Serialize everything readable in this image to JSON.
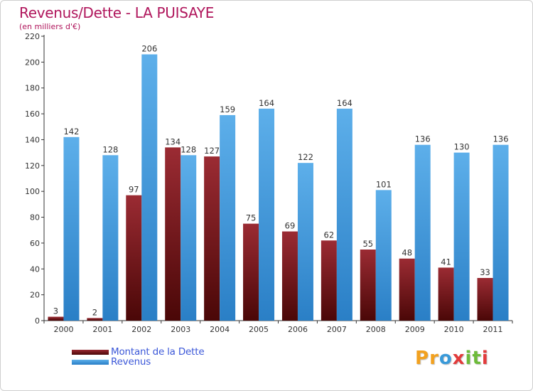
{
  "title": "Revenus/Dette - LA PUISAYE",
  "subtitle": "(en milliers d'€)",
  "colors": {
    "title": "#b0165c",
    "dette_top": "#9b2b33",
    "dette_bottom": "#4a0707",
    "revenus_top": "#5dafea",
    "revenus_bottom": "#2a7fc6",
    "axis": "#333333",
    "legend_text": "#3b57d8"
  },
  "chart_data": {
    "type": "bar",
    "title": "Revenus/Dette - LA PUISAYE",
    "subtitle": "(en milliers d'€)",
    "xlabel": "",
    "ylabel": "",
    "ylim": [
      0,
      220
    ],
    "yticks": [
      0,
      20,
      40,
      60,
      80,
      100,
      120,
      140,
      160,
      180,
      200,
      220
    ],
    "grid": false,
    "categories": [
      "2000",
      "2001",
      "2002",
      "2003",
      "2004",
      "2005",
      "2006",
      "2007",
      "2008",
      "2009",
      "2010",
      "2011"
    ],
    "series": [
      {
        "name": "Montant de la Dette",
        "values": [
          3,
          2,
          97,
          134,
          127,
          75,
          69,
          62,
          55,
          48,
          41,
          33
        ]
      },
      {
        "name": "Revenus",
        "values": [
          142,
          128,
          206,
          128,
          159,
          164,
          122,
          164,
          101,
          136,
          130,
          136
        ]
      }
    ],
    "legend_position": "bottom-left"
  },
  "legend": [
    {
      "label": "Montant de la Dette"
    },
    {
      "label": "Revenus"
    }
  ],
  "logo": {
    "letters": [
      "P",
      "r",
      "o",
      "x",
      "i",
      "t",
      "i"
    ],
    "colors": [
      "#f2a11f",
      "#f2a11f",
      "#3a9ad9",
      "#e23b3b",
      "#6dbb3a",
      "#6dbb3a",
      "#e23b3b"
    ]
  }
}
